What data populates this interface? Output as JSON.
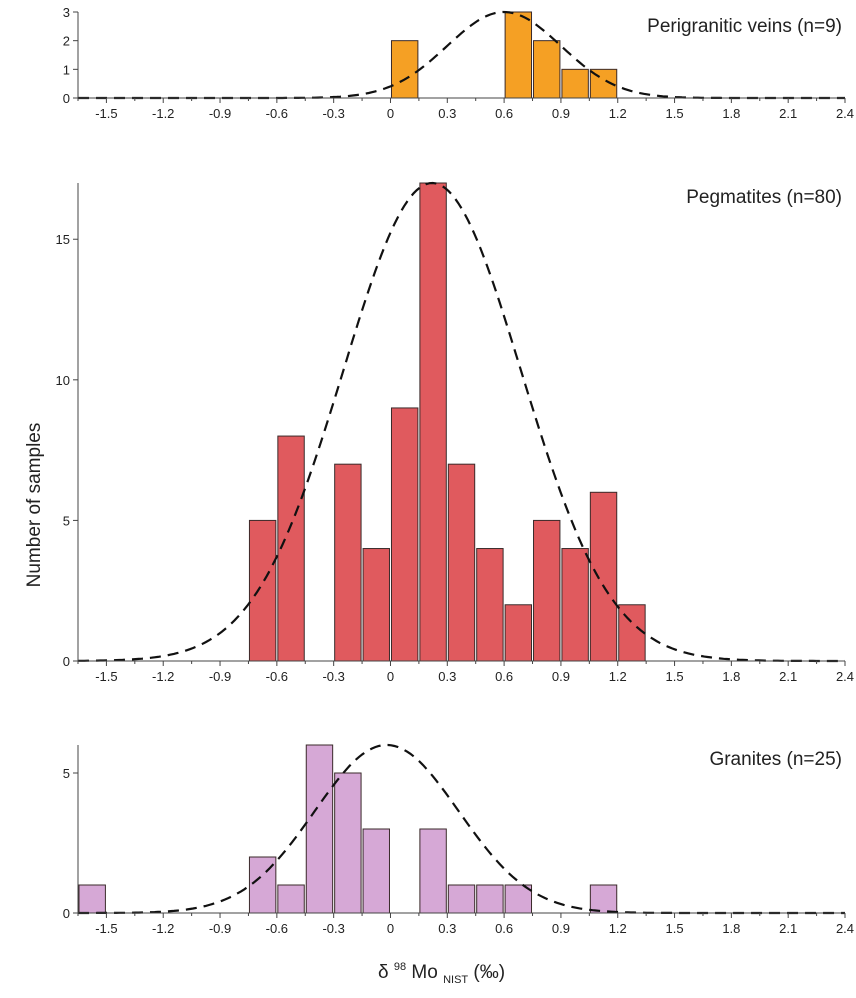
{
  "chart_data": {
    "type": "bar",
    "ylabel": "Number of samples",
    "xlabel": {
      "prefix": "δ",
      "sup": "98",
      "main": "Mo",
      "sub": "NIST",
      "unit": " (‰)"
    },
    "x_ticks": [
      "-1.5",
      "-1.2",
      "-0.9",
      "-0.6",
      "-0.3",
      "0",
      "0.3",
      "0.6",
      "0.9",
      "1.2",
      "1.5",
      "1.8",
      "2.1",
      "2.4"
    ],
    "xlim": [
      -1.65,
      2.4
    ],
    "bin_width": 0.15,
    "panels": [
      {
        "title": "Perigranitic veins (n=9)",
        "color": "#f5a024",
        "ylim": [
          0,
          3
        ],
        "y_ticks": [
          "0",
          "1",
          "2",
          "3"
        ],
        "bins": [
          {
            "x": 0.0,
            "count": 2
          },
          {
            "x": 0.6,
            "count": 3
          },
          {
            "x": 0.75,
            "count": 2
          },
          {
            "x": 0.9,
            "count": 1
          },
          {
            "x": 1.05,
            "count": 1
          }
        ],
        "fit": {
          "mean": 0.6,
          "sd": 0.3,
          "peak": 3
        }
      },
      {
        "title": "Pegmatites (n=80)",
        "color": "#e05a5e",
        "ylim": [
          0,
          17
        ],
        "y_ticks": [
          "0",
          "5",
          "10",
          "15"
        ],
        "bins": [
          {
            "x": -0.75,
            "count": 5
          },
          {
            "x": -0.6,
            "count": 8
          },
          {
            "x": -0.3,
            "count": 7
          },
          {
            "x": -0.15,
            "count": 4
          },
          {
            "x": 0.0,
            "count": 9
          },
          {
            "x": 0.15,
            "count": 17
          },
          {
            "x": 0.3,
            "count": 7
          },
          {
            "x": 0.45,
            "count": 4
          },
          {
            "x": 0.6,
            "count": 2
          },
          {
            "x": 0.75,
            "count": 5
          },
          {
            "x": 0.9,
            "count": 4
          },
          {
            "x": 1.05,
            "count": 6
          },
          {
            "x": 1.2,
            "count": 2
          }
        ],
        "fit": {
          "mean": 0.22,
          "sd": 0.47,
          "peak": 17
        }
      },
      {
        "title": "Granites (n=25)",
        "color": "#d6a8d6",
        "ylim": [
          0,
          6
        ],
        "y_ticks": [
          "0",
          "5"
        ],
        "bins": [
          {
            "x": -1.65,
            "count": 1
          },
          {
            "x": -0.75,
            "count": 2
          },
          {
            "x": -0.6,
            "count": 1
          },
          {
            "x": -0.45,
            "count": 6
          },
          {
            "x": -0.3,
            "count": 5
          },
          {
            "x": -0.15,
            "count": 3
          },
          {
            "x": 0.15,
            "count": 3
          },
          {
            "x": 0.3,
            "count": 1
          },
          {
            "x": 0.45,
            "count": 1
          },
          {
            "x": 0.6,
            "count": 1
          },
          {
            "x": 1.05,
            "count": 1
          }
        ],
        "fit": {
          "mean": -0.02,
          "sd": 0.38,
          "peak": 6
        }
      }
    ]
  }
}
